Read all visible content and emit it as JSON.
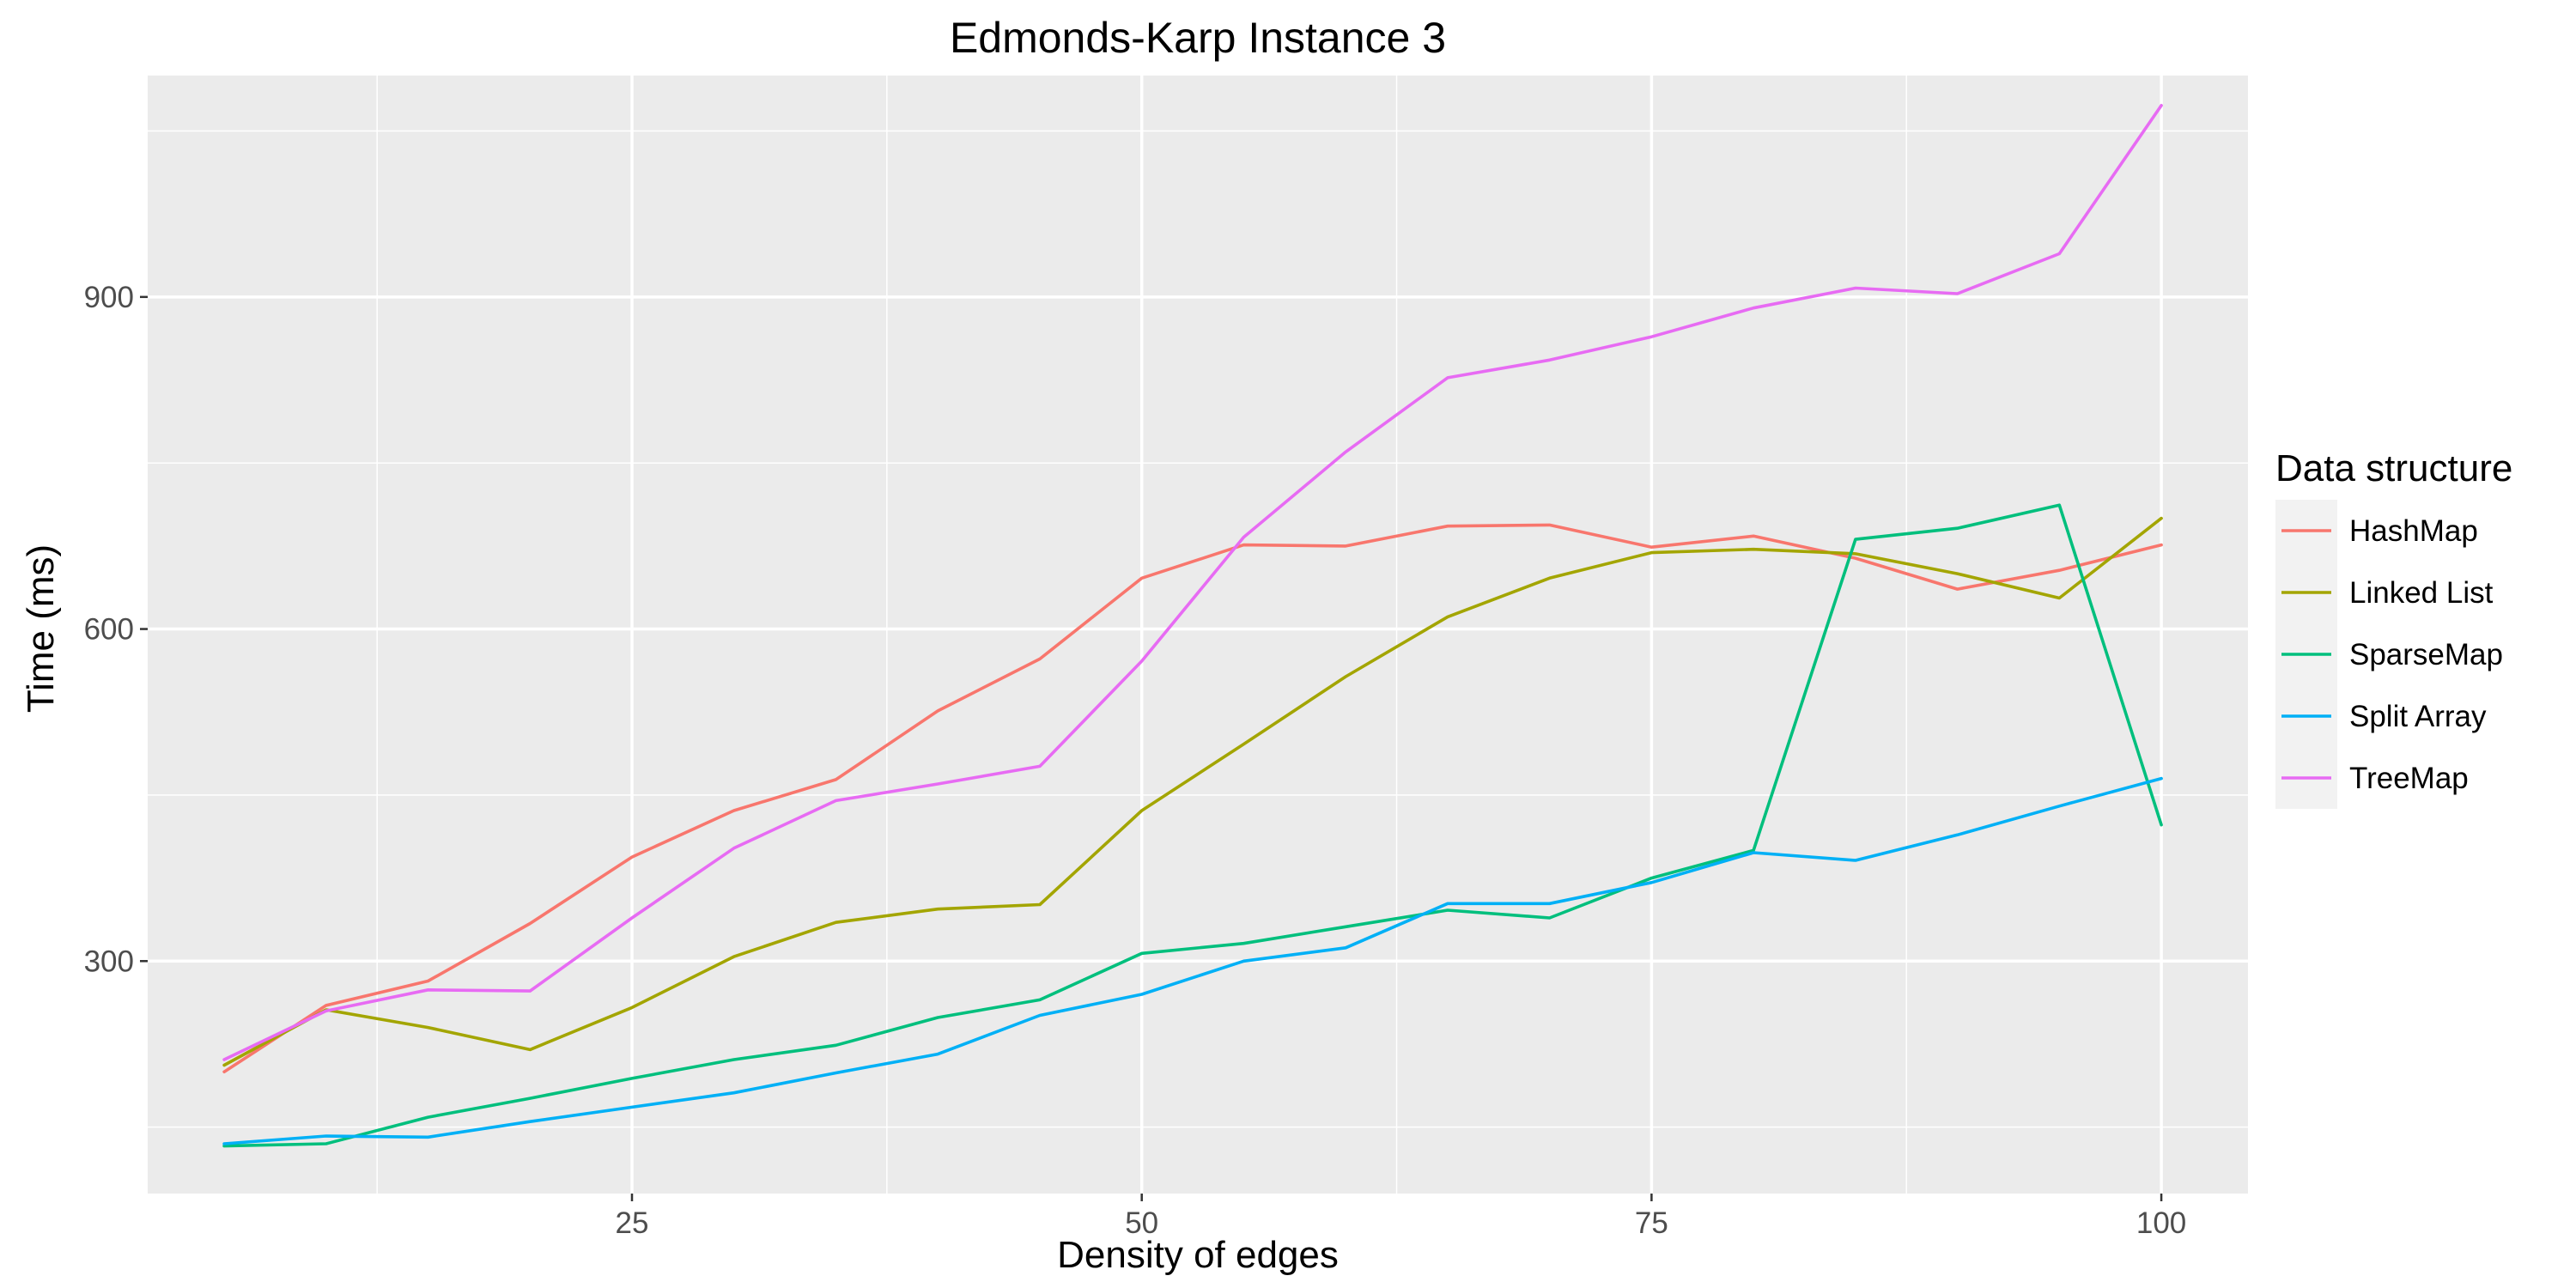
{
  "chart_data": {
    "type": "line",
    "title": "Edmonds-Karp Instance 3",
    "xlabel": "Density of edges",
    "ylabel": "Time (ms)",
    "xlim": [
      1.25,
      104.25
    ],
    "ylim": [
      90,
      1100
    ],
    "xticks": [
      25,
      50,
      75,
      100
    ],
    "yticks": [
      300,
      600,
      900
    ],
    "grid": true,
    "legend_title": "Data structure",
    "legend_position": "right",
    "x": [
      5,
      10,
      15,
      20,
      25,
      30,
      35,
      40,
      45,
      50,
      55,
      60,
      65,
      70,
      75,
      80,
      85,
      90,
      95,
      100
    ],
    "series": [
      {
        "name": "HashMap",
        "color": "#F8766D",
        "values": [
          200,
          260,
          282,
          334,
          394,
          436,
          464,
          526,
          573,
          646,
          676,
          675,
          693,
          694,
          674,
          684,
          664,
          636,
          653,
          676
        ]
      },
      {
        "name": "Linked List",
        "color": "#A3A500",
        "values": [
          206,
          256,
          240,
          220,
          258,
          304,
          335,
          347,
          351,
          436,
          496,
          557,
          611,
          646,
          669,
          672,
          668,
          650,
          628,
          700
        ]
      },
      {
        "name": "SparseMap",
        "color": "#00BF7D",
        "values": [
          133,
          135,
          159,
          176,
          194,
          211,
          224,
          249,
          265,
          307,
          316,
          331,
          346,
          339,
          375,
          400,
          681,
          691,
          712,
          423
        ]
      },
      {
        "name": "Split Array",
        "color": "#00B0F6",
        "values": [
          135,
          142,
          141,
          155,
          168,
          181,
          199,
          216,
          251,
          270,
          300,
          312,
          352,
          352,
          371,
          398,
          391,
          414,
          440,
          465
        ]
      },
      {
        "name": "TreeMap",
        "color": "#E76BF3",
        "values": [
          211,
          255,
          274,
          273,
          339,
          402,
          445,
          460,
          476,
          571,
          683,
          760,
          827,
          843,
          864,
          890,
          908,
          903,
          939,
          1073
        ]
      }
    ]
  }
}
